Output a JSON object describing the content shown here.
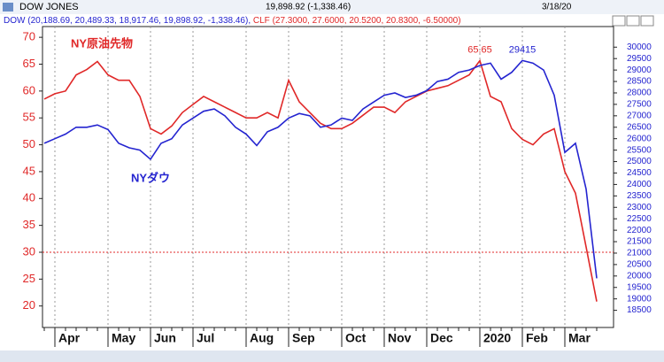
{
  "window": {
    "title": "DOW JONES",
    "quote": "19,898.92 (-1,338.46)",
    "date": "3/18/20",
    "dow_detail": "(20,188.69, 20,489.33, 18,917.46, 19,898.92, -1,338.46),",
    "clf_detail": "(27.3000, 27.6000, 20.5200, 20.8300, -6.50000)"
  },
  "chart_data": {
    "type": "line",
    "categories": [
      null,
      "Apr",
      null,
      null,
      null,
      null,
      "May",
      null,
      null,
      null,
      "Jun",
      null,
      null,
      null,
      "Jul",
      null,
      null,
      null,
      null,
      "Aug",
      null,
      null,
      null,
      "Sep",
      null,
      null,
      null,
      null,
      "Oct",
      null,
      null,
      null,
      "Nov",
      null,
      null,
      null,
      "Dec",
      null,
      null,
      null,
      null,
      "2020",
      null,
      null,
      null,
      "Feb",
      null,
      null,
      null,
      "Mar",
      null,
      null,
      null
    ],
    "series": [
      {
        "name": "CLF",
        "label": "NY原油先物",
        "color": "#e02828",
        "values": [
          58.5,
          59.5,
          60,
          63,
          64,
          65.5,
          63,
          62,
          62,
          59,
          53,
          52,
          53.5,
          56,
          57.5,
          59,
          58,
          57,
          56,
          55,
          55,
          56,
          55,
          62,
          58,
          56,
          54,
          53,
          53,
          54,
          55.5,
          57,
          57,
          56,
          58,
          59,
          60,
          60.5,
          61,
          62,
          63,
          65.65,
          59,
          58,
          53,
          51,
          50,
          52,
          53,
          45,
          41,
          31,
          20.83
        ]
      },
      {
        "name": "DOW",
        "label": "NYダウ",
        "color": "#2424d0",
        "axis": "y2",
        "values": [
          25800,
          26000,
          26200,
          26500,
          26500,
          26600,
          26400,
          25800,
          25600,
          25500,
          25100,
          25800,
          26000,
          26600,
          26900,
          27200,
          27300,
          27000,
          26500,
          26200,
          25700,
          26300,
          26500,
          26900,
          27100,
          27000,
          26500,
          26600,
          26900,
          26800,
          27300,
          27600,
          27900,
          28000,
          27800,
          27900,
          28100,
          28500,
          28600,
          28900,
          29000,
          29200,
          29300,
          28600,
          28900,
          29415,
          29300,
          29000,
          27900,
          25400,
          25800,
          23800,
          19898.92
        ]
      }
    ],
    "peak_labels": [
      {
        "series": 0,
        "index": 41,
        "text": "65.65"
      },
      {
        "series": 1,
        "index": 45,
        "text": "29415"
      }
    ],
    "reference_line": 30,
    "ylim": [
      16,
      72
    ],
    "yticks": [
      20,
      25,
      30,
      35,
      40,
      45,
      50,
      55,
      60,
      65,
      70
    ],
    "y2lim": [
      17750,
      30900
    ],
    "y2ticks": [
      18500,
      19000,
      19500,
      20000,
      20500,
      21000,
      21500,
      22000,
      22500,
      23000,
      23500,
      24000,
      24500,
      25000,
      25500,
      26000,
      26500,
      27000,
      27500,
      28000,
      28500,
      29000,
      29500,
      30000
    ],
    "grid": true
  }
}
